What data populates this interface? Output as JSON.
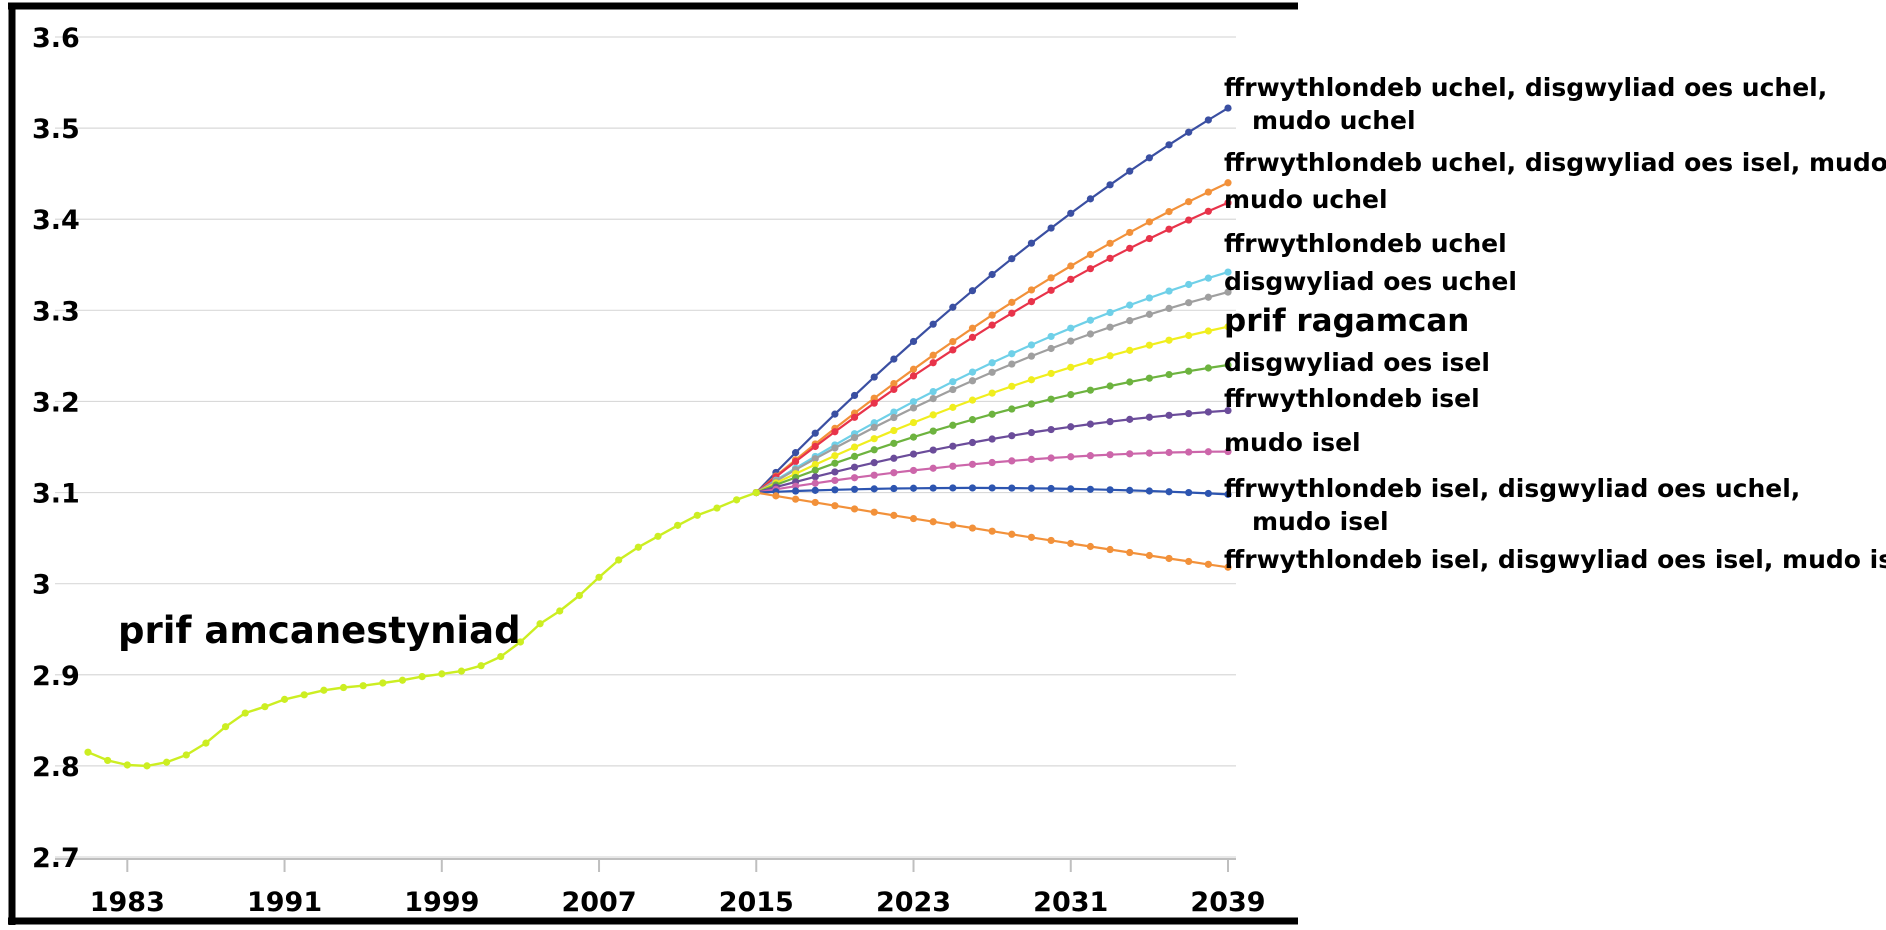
{
  "chart_data": {
    "type": "line",
    "title": "",
    "xlabel": "",
    "ylabel": "",
    "xlim": [
      1981,
      2039
    ],
    "ylim": [
      2.7,
      3.6
    ],
    "y_ticks": [
      "2.7",
      "2.8",
      "2.9",
      "3",
      "3.1",
      "3.2",
      "3.3",
      "3.4",
      "3.5",
      "3.6"
    ],
    "x_ticks": [
      "1983",
      "1991",
      "1999",
      "2007",
      "2015",
      "2023",
      "2031",
      "2039"
    ],
    "grid": true,
    "legend": "none",
    "colors": {
      "grid": "#d9d9d9",
      "axis": "#000000",
      "tick": "#bfbfbf"
    },
    "annotations": {
      "historical": "prif amcanestyniad"
    },
    "historical": {
      "color": "#ccee22",
      "x": [
        1981,
        1982,
        1983,
        1984,
        1985,
        1986,
        1987,
        1988,
        1989,
        1990,
        1991,
        1992,
        1993,
        1994,
        1995,
        1996,
        1997,
        1998,
        1999,
        2000,
        2001,
        2002,
        2003,
        2004,
        2005,
        2006,
        2007,
        2008,
        2009,
        2010,
        2011,
        2012,
        2013,
        2014,
        2015
      ],
      "y": [
        2.815,
        2.806,
        2.801,
        2.8,
        2.804,
        2.812,
        2.825,
        2.843,
        2.858,
        2.865,
        2.873,
        2.878,
        2.883,
        2.886,
        2.888,
        2.891,
        2.894,
        2.898,
        2.901,
        2.904,
        2.91,
        2.92,
        2.936,
        2.956,
        2.97,
        2.987,
        3.007,
        3.026,
        3.04,
        3.052,
        3.064,
        3.075,
        3.083,
        3.092,
        3.1
      ]
    },
    "x_projection": [
      2015,
      2016,
      2017,
      2018,
      2019,
      2020,
      2021,
      2022,
      2023,
      2024,
      2025,
      2026,
      2027,
      2028,
      2029,
      2030,
      2031,
      2032,
      2033,
      2034,
      2035,
      2036,
      2037,
      2038,
      2039
    ],
    "series": [
      {
        "name": "ffrwythlondeb uchel, disgwyliad oes uchel, mudo uchel",
        "label_lines": [
          "ffrwythlondeb uchel, disgwyliad oes uchel,",
          "mudo uchel"
        ],
        "color": "#3a4fa2",
        "end": 3.522,
        "curve": 1.03
      },
      {
        "name": "ffrwythlondeb uchel, disgwyliad oes isel, mudo uch.",
        "label_lines": [
          "ffrwythlondeb uchel, disgwyliad oes isel, mudo uch."
        ],
        "color": "#f2913a",
        "end": 3.44,
        "curve": 0.9
      },
      {
        "name": "mudo uchel",
        "label_lines": [
          "mudo uchel"
        ],
        "color": "#e8334a",
        "end": 3.418,
        "curve": 0.9
      },
      {
        "name": "ffrwythlondeb uchel",
        "label_lines": [
          "ffrwythlondeb uchel"
        ],
        "color": "#6fd0e8",
        "end": 3.342,
        "curve": 0.78
      },
      {
        "name": "disgwyliad oes uchel",
        "label_lines": [
          "disgwyliad oes uchel"
        ],
        "color": "#9f9f9f",
        "end": 3.32,
        "curve": 0.8
      },
      {
        "name": "prif ragamcan",
        "label_lines": [
          "prif ragamcan"
        ],
        "color": "#f0ee1e",
        "end": 3.282,
        "curve": 0.66,
        "emphasis": true
      },
      {
        "name": "disgwyliad oes isel",
        "label_lines": [
          "disgwyliad oes isel"
        ],
        "color": "#6db33f",
        "end": 3.24,
        "curve": 0.58
      },
      {
        "name": "ffrwythlondeb isel",
        "label_lines": [
          "ffrwythlondeb isel"
        ],
        "color": "#6b4c9a",
        "end": 3.19,
        "curve": 0.5
      },
      {
        "name": "mudo isel",
        "label_lines": [
          "mudo isel"
        ],
        "color": "#cc66aa",
        "end": 3.145,
        "curve": 0.38
      },
      {
        "name": "ffrwythlondeb isel, disgwyliad oes uchel, mudo isel",
        "label_lines": [
          "ffrwythlondeb isel, disgwyliad oes uchel,",
          "mudo isel"
        ],
        "color": "#2d55b0",
        "end": 3.098,
        "curve": 0.22
      },
      {
        "name": "ffrwythlondeb isel, disgwyliad oes isel, mudo isel",
        "label_lines": [
          "ffrwythlondeb isel, disgwyliad oes isel, mudo isel"
        ],
        "color": "#f2913a",
        "end": 3.018,
        "curve": -0.05
      }
    ]
  }
}
